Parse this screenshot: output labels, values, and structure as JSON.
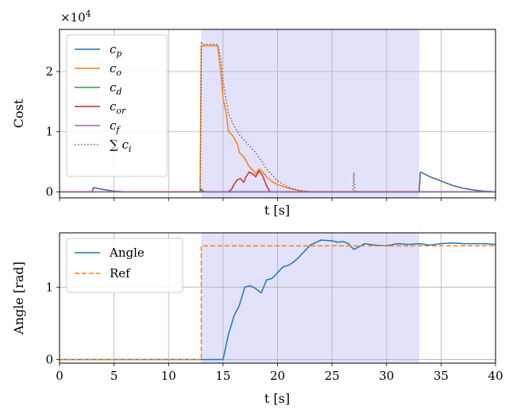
{
  "chart_data": [
    {
      "type": "line",
      "ylabel": "Cost",
      "xlabel": "t [s]",
      "offset_text": "×10",
      "offset_exp": "4",
      "xlim": [
        0,
        40
      ],
      "ylim": [
        -0.1,
        2.7
      ],
      "yticks": [
        0,
        1,
        2
      ],
      "xticks": [
        0,
        5,
        10,
        15,
        20,
        25,
        30,
        35,
        40
      ],
      "grid": true,
      "legend": "upper-left",
      "shaded_interval": [
        13,
        33
      ],
      "series": [
        {
          "name": "c_p",
          "label_main": "c",
          "label_sub": "p",
          "color": "#1f77b4",
          "style": "solid",
          "x": [
            0,
            3,
            3.1,
            4,
            5,
            6,
            13,
            13.05,
            33,
            33.1,
            34,
            35,
            36,
            37,
            38,
            39,
            40
          ],
          "y": [
            0,
            0,
            0.07,
            0.04,
            0.01,
            0,
            0,
            0,
            0,
            0.33,
            0.25,
            0.18,
            0.11,
            0.06,
            0.03,
            0.01,
            0
          ]
        },
        {
          "name": "c_o",
          "label_main": "c",
          "label_sub": "o",
          "color": "#ff7f0e",
          "style": "solid",
          "x": [
            0,
            12.9,
            13,
            13.1,
            14.5,
            14.8,
            15,
            15.3,
            15.5,
            15.8,
            16,
            16.3,
            16.5,
            16.8,
            17,
            17.3,
            17.5,
            17.8,
            18,
            18.3,
            18.6,
            19,
            19.5,
            20,
            21,
            22,
            23,
            40
          ],
          "y": [
            0,
            0,
            2.4,
            2.43,
            2.43,
            2.0,
            1.55,
            1.3,
            1.0,
            0.95,
            0.9,
            0.8,
            0.65,
            0.6,
            0.55,
            0.45,
            0.4,
            0.35,
            0.3,
            0.38,
            0.34,
            0.25,
            0.17,
            0.12,
            0.06,
            0.02,
            0,
            0
          ]
        },
        {
          "name": "c_d",
          "label_main": "c",
          "label_sub": "d",
          "color": "#2ca02c",
          "style": "solid",
          "x": [
            0,
            12.9,
            13,
            13.1,
            13.4,
            40
          ],
          "y": [
            0,
            0,
            0.05,
            0.02,
            0,
            0
          ]
        },
        {
          "name": "c_or",
          "label_main": "c",
          "label_sub": "or",
          "color": "#d62728",
          "style": "solid",
          "x": [
            0,
            15.5,
            15.8,
            16,
            16.3,
            16.6,
            16.9,
            17.1,
            17.4,
            17.7,
            18,
            18.3,
            18.6,
            19,
            19.3,
            40
          ],
          "y": [
            0,
            0,
            0.05,
            0.12,
            0.2,
            0.22,
            0.16,
            0.25,
            0.33,
            0.3,
            0.25,
            0.35,
            0.28,
            0.1,
            0,
            0
          ]
        },
        {
          "name": "c_f",
          "label_main": "c",
          "label_sub": "f",
          "color": "#9467bd",
          "style": "solid",
          "x": [
            0,
            40
          ],
          "y": [
            0,
            0
          ]
        },
        {
          "name": "sum c_i",
          "label_main": "∑ c",
          "label_sub": "i",
          "color": "#8c564b",
          "style": "dotted",
          "x": [
            0,
            3,
            3.1,
            4,
            5,
            6,
            12.9,
            13,
            13.1,
            14.5,
            14.8,
            15,
            15.3,
            15.5,
            16,
            16.5,
            17,
            17.5,
            18,
            18.5,
            19,
            20,
            21,
            22,
            23,
            26.9,
            27,
            27.1,
            33,
            33.1,
            34,
            35,
            36,
            37,
            38,
            39,
            40
          ],
          "y": [
            0,
            0,
            0.07,
            0.04,
            0.01,
            0,
            0,
            2.5,
            2.45,
            2.45,
            2.2,
            1.85,
            1.5,
            1.3,
            1.1,
            0.95,
            0.85,
            0.75,
            0.65,
            0.52,
            0.38,
            0.18,
            0.08,
            0.02,
            0,
            0,
            0.32,
            0,
            0,
            0.33,
            0.25,
            0.18,
            0.11,
            0.06,
            0.03,
            0.01,
            0
          ]
        }
      ]
    },
    {
      "type": "line",
      "ylabel": "Angle [rad]",
      "xlabel": "t [s]",
      "xlim": [
        0,
        40
      ],
      "ylim": [
        -0.05,
        1.75
      ],
      "yticks": [
        0,
        1
      ],
      "xticks": [
        0,
        5,
        10,
        15,
        20,
        25,
        30,
        35,
        40
      ],
      "grid": true,
      "legend": "upper-left",
      "shaded_interval": [
        13,
        33
      ],
      "series": [
        {
          "name": "Angle",
          "color": "#1f77b4",
          "style": "solid",
          "x": [
            0,
            15,
            15.5,
            16,
            16.5,
            17,
            17.5,
            18,
            18.5,
            19,
            19.5,
            20,
            20.5,
            21,
            21.5,
            22,
            22.5,
            23,
            24,
            25,
            25.5,
            26,
            26.5,
            27,
            28,
            29,
            30,
            31,
            32,
            33,
            34,
            35,
            36,
            37,
            38,
            39,
            40
          ],
          "y": [
            0,
            0,
            0.35,
            0.6,
            0.75,
            1.0,
            1.02,
            0.98,
            0.92,
            1.1,
            1.12,
            1.2,
            1.28,
            1.3,
            1.35,
            1.42,
            1.5,
            1.58,
            1.65,
            1.64,
            1.62,
            1.63,
            1.6,
            1.52,
            1.6,
            1.58,
            1.57,
            1.6,
            1.59,
            1.6,
            1.58,
            1.6,
            1.61,
            1.6,
            1.6,
            1.6,
            1.59
          ]
        },
        {
          "name": "Ref",
          "color": "#ff7f0e",
          "style": "dashed",
          "x": [
            0,
            13,
            13,
            40
          ],
          "y": [
            0,
            0,
            1.5708,
            1.5708
          ]
        }
      ]
    }
  ]
}
